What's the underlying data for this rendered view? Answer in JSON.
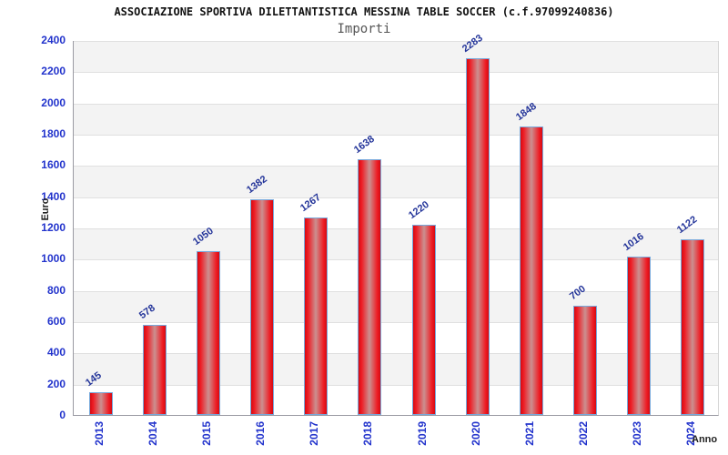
{
  "header": {
    "title": "ASSOCIAZIONE SPORTIVA DILETTANTISTICA MESSINA TABLE SOCCER (c.f.97099240836)",
    "subtitle": "Importi"
  },
  "chart_data": {
    "type": "bar",
    "title": "ASSOCIAZIONE SPORTIVA DILETTANTISTICA MESSINA TABLE SOCCER (c.f.97099240836)",
    "subtitle": "Importi",
    "categories": [
      "2013",
      "2014",
      "2015",
      "2016",
      "2017",
      "2018",
      "2019",
      "2020",
      "2021",
      "2022",
      "2023",
      "2024"
    ],
    "values": [
      145,
      578,
      1050,
      1382,
      1267,
      1638,
      1220,
      2283,
      1848,
      700,
      1016,
      1122
    ],
    "xlabel": "Anno",
    "ylabel": "Euro",
    "ylim": [
      0,
      2400
    ],
    "yticks": [
      0,
      200,
      400,
      600,
      800,
      1000,
      1200,
      1400,
      1600,
      1800,
      2000,
      2200,
      2400
    ],
    "grid": true,
    "legend_position": "none",
    "band_alternating": true,
    "colors": {
      "bar_edge": "#ee1c24",
      "bar_dark_edge": "#d40a12",
      "bar_center_highlight": "#cb9090",
      "bar_border": "#77a9dc",
      "tick_label": "#2233cc",
      "value_label": "#223399",
      "band_gray": "#f3f3f3",
      "gridline": "#e0e0e0",
      "axis_line": "#9a9aa2",
      "title": "#111111",
      "subtitle": "#555555"
    }
  }
}
